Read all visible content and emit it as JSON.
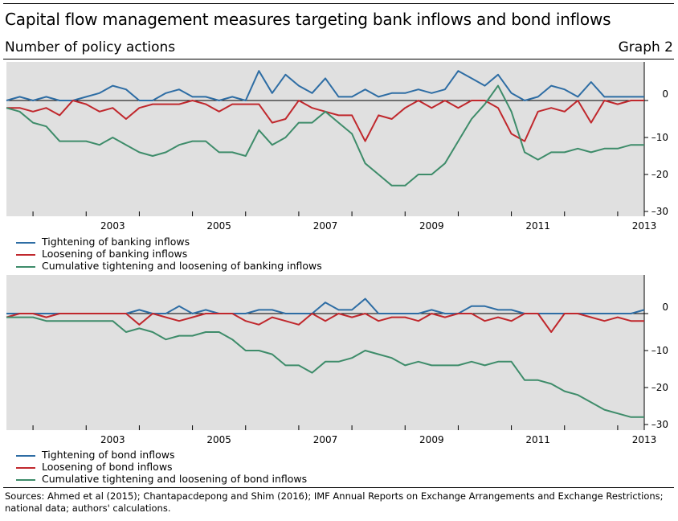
{
  "header": {
    "title": "Capital flow management measures targeting bank inflows and bond inflows",
    "subtitle": "Number of policy actions",
    "graph_number": "Graph 2"
  },
  "footer": {
    "sources": "Sources: Ahmed et al (2015); Chantapacdepong and Shim (2016); IMF Annual Reports on Exchange Arrangements and Exchange Restrictions; national data; authors' calculations."
  },
  "chart_data": [
    {
      "type": "line",
      "title": "",
      "xlabel": "",
      "ylabel": "",
      "x_tick_labels": [
        "2003",
        "2005",
        "2007",
        "2009",
        "2011",
        "2013"
      ],
      "x_ticks": [
        2002,
        2003,
        2004,
        2005,
        2006,
        2007,
        2008,
        2009,
        2010,
        2011,
        2012,
        2013
      ],
      "xlim": [
        2001.5,
        2013.5
      ],
      "y_tick_labels": [
        "0",
        "–10",
        "–20",
        "–30"
      ],
      "y_ticks": [
        0,
        -10,
        -20,
        -30
      ],
      "ylim": [
        -30,
        9
      ],
      "y_axis_side": "right",
      "grid": false,
      "legend_position": "bottom-left",
      "x": [
        2001.5,
        2001.75,
        2002,
        2002.25,
        2002.5,
        2002.75,
        2003,
        2003.25,
        2003.5,
        2003.75,
        2004,
        2004.25,
        2004.5,
        2004.75,
        2005,
        2005.25,
        2005.5,
        2005.75,
        2006,
        2006.25,
        2006.5,
        2006.75,
        2007,
        2007.25,
        2007.5,
        2007.75,
        2008,
        2008.25,
        2008.5,
        2008.75,
        2009,
        2009.25,
        2009.5,
        2009.75,
        2010,
        2010.25,
        2010.5,
        2010.75,
        2011,
        2011.25,
        2011.5,
        2011.75,
        2012,
        2012.25,
        2012.5,
        2012.75,
        2013,
        2013.25,
        2013.5
      ],
      "series": [
        {
          "name": "Tightening of banking inflows",
          "color": "#2e6da4",
          "values": [
            0,
            1,
            0,
            1,
            0,
            0,
            1,
            2,
            4,
            3,
            0,
            0,
            2,
            3,
            1,
            1,
            0,
            1,
            0,
            8,
            2,
            7,
            4,
            2,
            6,
            1,
            1,
            3,
            1,
            2,
            2,
            3,
            2,
            3,
            8,
            6,
            4,
            7,
            2,
            0,
            1,
            4,
            3,
            1,
            5,
            1,
            1,
            1,
            1
          ]
        },
        {
          "name": "Loosening of banking inflows",
          "color": "#c0282d",
          "values": [
            -2,
            -2,
            -3,
            -2,
            -4,
            0,
            -1,
            -3,
            -2,
            -5,
            -2,
            -1,
            -1,
            -1,
            0,
            -1,
            -3,
            -1,
            -1,
            -1,
            -6,
            -5,
            0,
            -2,
            -3,
            -4,
            -4,
            -11,
            -4,
            -5,
            -2,
            0,
            -2,
            0,
            -2,
            0,
            0,
            -2,
            -9,
            -11,
            -3,
            -2,
            -3,
            0,
            -6,
            0,
            -1,
            0,
            0
          ]
        },
        {
          "name": "Cumulative tightening and loosening of banking inflows",
          "color": "#3e8c6a",
          "values": [
            -2,
            -3,
            -6,
            -7,
            -11,
            -11,
            -11,
            -12,
            -10,
            -12,
            -14,
            -15,
            -14,
            -12,
            -11,
            -11,
            -14,
            -14,
            -15,
            -8,
            -12,
            -10,
            -6,
            -6,
            -3,
            -6,
            -9,
            -17,
            -20,
            -23,
            -23,
            -20,
            -20,
            -17,
            -11,
            -5,
            -1,
            4,
            -3,
            -14,
            -16,
            -14,
            -14,
            -13,
            -14,
            -13,
            -13,
            -12,
            -12
          ]
        }
      ]
    },
    {
      "type": "line",
      "title": "",
      "xlabel": "",
      "ylabel": "",
      "x_tick_labels": [
        "2003",
        "2005",
        "2007",
        "2009",
        "2011",
        "2013"
      ],
      "x_ticks": [
        2002,
        2003,
        2004,
        2005,
        2006,
        2007,
        2008,
        2009,
        2010,
        2011,
        2012,
        2013
      ],
      "xlim": [
        2001.5,
        2013.5
      ],
      "y_tick_labels": [
        "0",
        "–10",
        "–20",
        "–30"
      ],
      "y_ticks": [
        0,
        -10,
        -20,
        -30
      ],
      "ylim": [
        -30,
        9
      ],
      "y_axis_side": "right",
      "grid": false,
      "legend_position": "bottom-left",
      "x": [
        2001.5,
        2001.75,
        2002,
        2002.25,
        2002.5,
        2002.75,
        2003,
        2003.25,
        2003.5,
        2003.75,
        2004,
        2004.25,
        2004.5,
        2004.75,
        2005,
        2005.25,
        2005.5,
        2005.75,
        2006,
        2006.25,
        2006.5,
        2006.75,
        2007,
        2007.25,
        2007.5,
        2007.75,
        2008,
        2008.25,
        2008.5,
        2008.75,
        2009,
        2009.25,
        2009.5,
        2009.75,
        2010,
        2010.25,
        2010.5,
        2010.75,
        2011,
        2011.25,
        2011.5,
        2011.75,
        2012,
        2012.25,
        2012.5,
        2012.75,
        2013,
        2013.25,
        2013.5
      ],
      "series": [
        {
          "name": "Tightening of bond inflows",
          "color": "#2e6da4",
          "values": [
            0,
            0,
            0,
            0,
            0,
            0,
            0,
            0,
            0,
            0,
            1,
            0,
            0,
            2,
            0,
            1,
            0,
            0,
            0,
            1,
            1,
            0,
            0,
            0,
            3,
            1,
            1,
            4,
            0,
            0,
            0,
            0,
            1,
            0,
            0,
            2,
            2,
            1,
            1,
            0,
            0,
            0,
            0,
            0,
            0,
            0,
            0,
            0,
            1
          ]
        },
        {
          "name": "Loosening of bond inflows",
          "color": "#c0282d",
          "values": [
            -1,
            0,
            0,
            -1,
            0,
            0,
            0,
            0,
            0,
            0,
            -3,
            0,
            -1,
            -2,
            -1,
            0,
            0,
            0,
            -2,
            -3,
            -1,
            -2,
            -3,
            0,
            -2,
            0,
            -1,
            0,
            -2,
            -1,
            -1,
            -2,
            0,
            -1,
            0,
            0,
            -2,
            -1,
            -2,
            0,
            0,
            -5,
            0,
            0,
            -1,
            -2,
            -1,
            -2,
            -2
          ]
        },
        {
          "name": "Cumulative tightening and loosening of bond inflows",
          "color": "#3e8c6a",
          "values": [
            -1,
            -1,
            -1,
            -2,
            -2,
            -2,
            -2,
            -2,
            -2,
            -5,
            -4,
            -5,
            -7,
            -6,
            -6,
            -5,
            -5,
            -7,
            -10,
            -10,
            -11,
            -14,
            -14,
            -16,
            -13,
            -13,
            -12,
            -10,
            -11,
            -12,
            -14,
            -13,
            -14,
            -14,
            -14,
            -13,
            -14,
            -13,
            -13,
            -18,
            -18,
            -19,
            -21,
            -22,
            -24,
            -26,
            -27,
            -28,
            -28
          ]
        }
      ]
    }
  ]
}
